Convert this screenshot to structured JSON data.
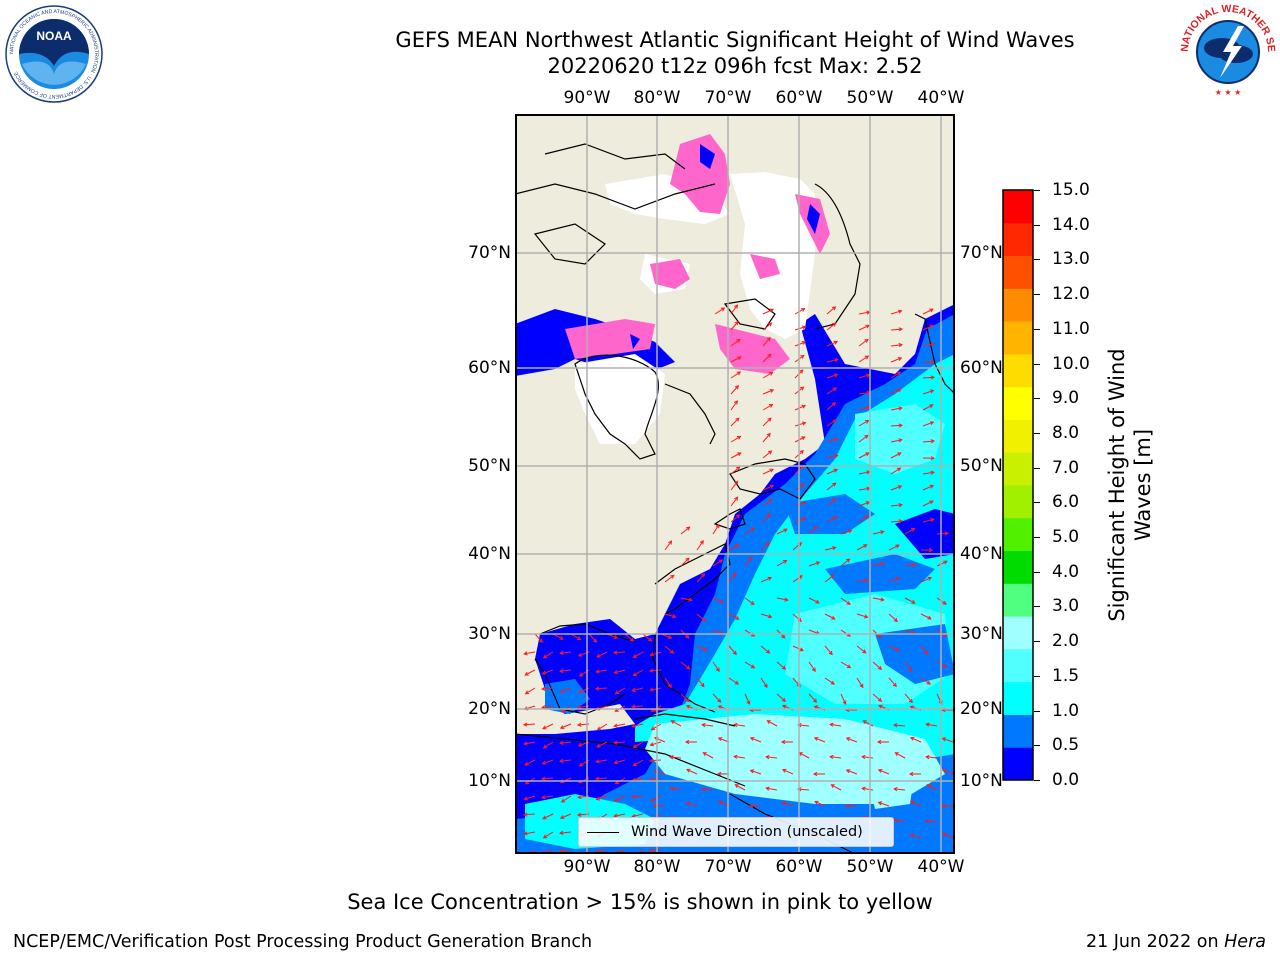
{
  "title_line1": "GEFS MEAN Northwest Atlantic Significant Height of Wind Waves",
  "title_line2": "20220620 t12z 096h fcst   Max: 2.52",
  "logos": {
    "left": {
      "name": "noaa-logo",
      "text": "NOAA",
      "ring_text": "NATIONAL OCEANIC AND ATMOSPHERIC ADMINISTRATION · U.S. DEPARTMENT OF COMMERCE"
    },
    "right": {
      "name": "nws-logo",
      "ring_text": "NATIONAL WEATHER SERVICE"
    }
  },
  "lon_labels": [
    "90°W",
    "80°W",
    "70°W",
    "60°W",
    "50°W",
    "40°W"
  ],
  "lat_labels": [
    "70°N",
    "60°N",
    "50°N",
    "40°N",
    "30°N",
    "20°N",
    "10°N"
  ],
  "colorbar": {
    "label": "Significant Height of Wind Waves [m]",
    "ticks": [
      "15.0",
      "14.0",
      "13.0",
      "12.0",
      "11.0",
      "10.0",
      "9.0",
      "8.0",
      "7.0",
      "6.0",
      "5.0",
      "4.0",
      "3.0",
      "2.0",
      "1.5",
      "1.0",
      "0.5",
      "0.0"
    ],
    "colors": [
      "#0000ff",
      "#0078ff",
      "#00ffff",
      "#50ffff",
      "#a0ffff",
      "#50ff80",
      "#00dc00",
      "#50f000",
      "#a0f000",
      "#c8f000",
      "#f0f000",
      "#ffff00",
      "#ffdc00",
      "#ffb400",
      "#ff8c00",
      "#ff5000",
      "#ff2800",
      "#ff0000"
    ]
  },
  "legend": {
    "label": "Wind Wave Direction (unscaled)"
  },
  "sea_ice_note": "Sea Ice Concentration > 15% is shown in pink to yellow",
  "footer_left": "NCEP/EMC/Verification Post Processing Product Generation Branch",
  "footer_right_prefix": "21 Jun 2022 on ",
  "footer_right_host": "Hera",
  "colors": {
    "land": "#eeecdc",
    "ice_white": "#ffffff",
    "ice_pink": "#ff66cc",
    "arrow": "#ff1a1a",
    "grid": "#b0b0b0"
  }
}
